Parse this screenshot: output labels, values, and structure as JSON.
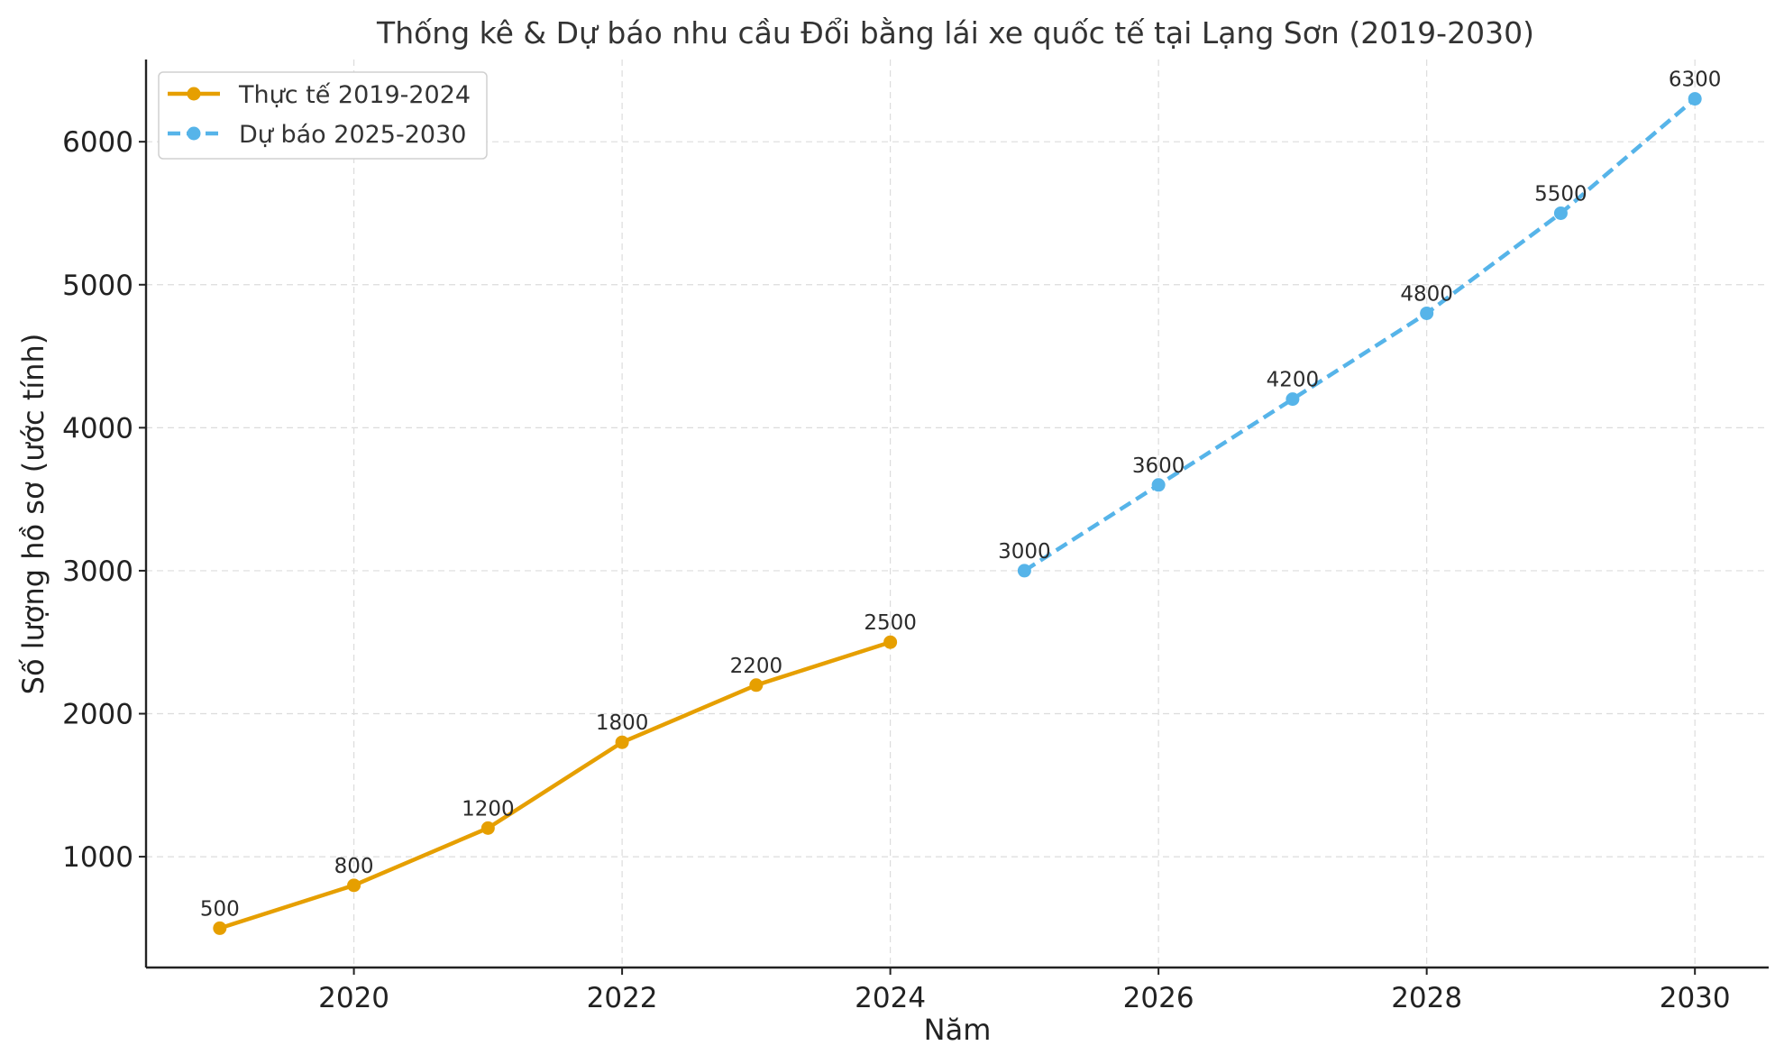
{
  "chart_data": {
    "type": "line",
    "title": "Thống kê & Dự báo nhu cầu Đổi bằng lái xe quốc tế tại Lạng Sơn (2019-2030)",
    "xlabel": "Năm",
    "ylabel": "Số lượng hồ sơ (ước tính)",
    "xlim": [
      2018.45,
      2030.55
    ],
    "ylim": [
      225,
      6575
    ],
    "x_ticks": [
      2020,
      2022,
      2024,
      2026,
      2028,
      2030
    ],
    "y_ticks": [
      1000,
      2000,
      3000,
      4000,
      5000,
      6000
    ],
    "grid": true,
    "legend_position": "top-left",
    "series": [
      {
        "name": "Thực tế 2019-2024",
        "color": "#E69F00",
        "line_style": "solid",
        "marker": "circle",
        "x": [
          2019,
          2020,
          2021,
          2022,
          2023,
          2024
        ],
        "values": [
          500,
          800,
          1200,
          1800,
          2200,
          2500
        ],
        "data_labels": [
          "500",
          "800",
          "1200",
          "1800",
          "2200",
          "2500"
        ]
      },
      {
        "name": "Dự báo 2025-2030",
        "color": "#56B4E9",
        "line_style": "dashed",
        "marker": "circle",
        "x": [
          2025,
          2026,
          2027,
          2028,
          2029,
          2030
        ],
        "values": [
          3000,
          3600,
          4200,
          4800,
          5500,
          6300
        ],
        "data_labels": [
          "3000",
          "3600",
          "4200",
          "4800",
          "5500",
          "6300"
        ]
      }
    ]
  }
}
